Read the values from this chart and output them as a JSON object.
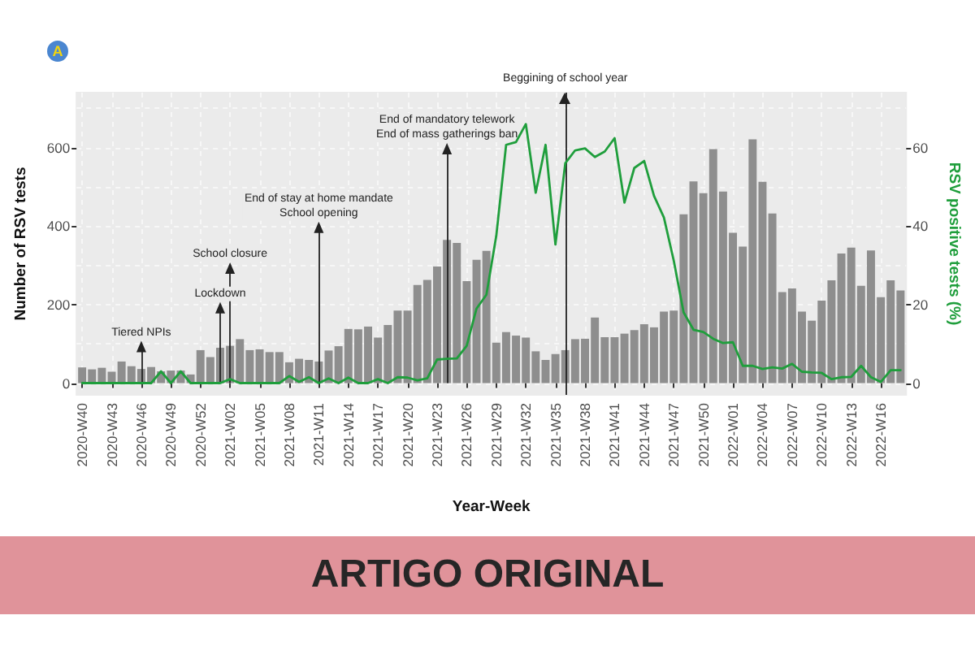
{
  "chart_data": {
    "type": "bar",
    "title": "A",
    "xlabel": "Year-Week",
    "ylabel": "Number of RSV tests",
    "y2label": "RSV positive tests (%)",
    "x": [
      "2020-09-28",
      "2020-10-05",
      "2020-10-12",
      "2020-10-19",
      "2020-10-26",
      "2020-11-02",
      "2020-11-09",
      "2020-11-16",
      "2020-11-23",
      "2020-11-30",
      "2020-12-07",
      "2020-12-14",
      "2020-12-21",
      "2020-12-28",
      "2021-01-04",
      "2021-01-11",
      "2021-01-18",
      "2021-01-25",
      "2021-02-01",
      "2021-02-08",
      "2021-02-15",
      "2021-02-22",
      "2021-03-01",
      "2021-03-08",
      "2021-03-15",
      "2021-03-22",
      "2021-03-29",
      "2021-04-05",
      "2021-04-12",
      "2021-04-19",
      "2021-04-26",
      "2021-05-03",
      "2021-05-10",
      "2021-05-17",
      "2021-05-24",
      "2021-05-31",
      "2021-06-07",
      "2021-06-14",
      "2021-06-21",
      "2021-06-28",
      "2021-07-05",
      "2021-07-12",
      "2021-07-19",
      "2021-07-26",
      "2021-08-02",
      "2021-08-09",
      "2021-08-16",
      "2021-08-23",
      "2021-08-30",
      "2021-09-06",
      "2021-09-13",
      "2021-09-20",
      "2021-09-27",
      "2021-10-04",
      "2021-10-11",
      "2021-10-18",
      "2021-10-25",
      "2021-11-01",
      "2021-11-08",
      "2021-11-15",
      "2021-11-22",
      "2021-11-29",
      "2021-12-06",
      "2021-12-13",
      "2021-12-20",
      "2021-12-27",
      "2022-01-03",
      "2022-01-10",
      "2022-01-17",
      "2022-01-24",
      "2022-01-31",
      "2022-02-07",
      "2022-02-14",
      "2022-02-21",
      "2022-02-28",
      "2022-03-07",
      "2022-03-14",
      "2022-03-21",
      "2022-03-28",
      "2022-04-04",
      "2022-04-11",
      "2022-04-18",
      "2022-04-25",
      "2022-05-02"
    ],
    "xlim": [
      "2020-09-24",
      "2022-05-06"
    ],
    "xticks": [
      {
        "value": "2020-09-28",
        "label": "2020-W40"
      },
      {
        "value": "2020-10-19",
        "label": "2020-W43"
      },
      {
        "value": "2020-11-09",
        "label": "2020-W46"
      },
      {
        "value": "2020-11-30",
        "label": "2020-W49"
      },
      {
        "value": "2020-12-21",
        "label": "2020-W52"
      },
      {
        "value": "2021-01-11",
        "label": "2021-W02"
      },
      {
        "value": "2021-02-01",
        "label": "2021-W05"
      },
      {
        "value": "2021-02-22",
        "label": "2021-W08"
      },
      {
        "value": "2021-03-15",
        "label": "2021-W11"
      },
      {
        "value": "2021-04-05",
        "label": "2021-W14"
      },
      {
        "value": "2021-04-26",
        "label": "2021-W17"
      },
      {
        "value": "2021-05-17",
        "label": "2021-W20"
      },
      {
        "value": "2021-06-07",
        "label": "2021-W23"
      },
      {
        "value": "2021-06-28",
        "label": "2021-W26"
      },
      {
        "value": "2021-07-19",
        "label": "2021-W29"
      },
      {
        "value": "2021-08-09",
        "label": "2021-W32"
      },
      {
        "value": "2021-08-30",
        "label": "2021-W35"
      },
      {
        "value": "2021-09-20",
        "label": "2021-W38"
      },
      {
        "value": "2021-10-11",
        "label": "2021-W41"
      },
      {
        "value": "2021-11-01",
        "label": "2021-W44"
      },
      {
        "value": "2021-11-22",
        "label": "2021-W47"
      },
      {
        "value": "2021-12-13",
        "label": "2021-W50"
      },
      {
        "value": "2022-01-03",
        "label": "2022-W01"
      },
      {
        "value": "2022-01-24",
        "label": "2022-W04"
      },
      {
        "value": "2022-02-14",
        "label": "2022-W07"
      },
      {
        "value": "2022-03-07",
        "label": "2022-W10"
      },
      {
        "value": "2022-03-28",
        "label": "2022-W13"
      },
      {
        "value": "2022-04-18",
        "label": "2022-W16"
      }
    ],
    "ylim": [
      -30,
      740
    ],
    "yticks": [
      0,
      200,
      400,
      600
    ],
    "y2lim": [
      -3,
      74
    ],
    "y2ticks": [
      0,
      20,
      40,
      60
    ],
    "series": [
      {
        "color": "#8e8e8e",
        "values": [
          40,
          35,
          39,
          29,
          55,
          43,
          36,
          41,
          30,
          32,
          32,
          22,
          84,
          66,
          90,
          95,
          112,
          84,
          86,
          79,
          79,
          53,
          62,
          59,
          55,
          83,
          94,
          138,
          137,
          144,
          116,
          148,
          185,
          185,
          250,
          263,
          297,
          365,
          357,
          260,
          314,
          337,
          103,
          130,
          121,
          116,
          81,
          59,
          74,
          84,
          112,
          113,
          167,
          117,
          117,
          126,
          135,
          150,
          142,
          182,
          185,
          430,
          514,
          484,
          596,
          488,
          383,
          348,
          621,
          513,
          432,
          232,
          241,
          182,
          159,
          210,
          262,
          330,
          345,
          248,
          338,
          219,
          262,
          236
        ]
      },
      {
        "type": "line",
        "axis": "y2",
        "color": "#1f9e3c",
        "values": [
          0,
          0,
          0,
          0,
          0,
          0,
          0,
          0,
          3,
          0,
          3,
          0,
          0,
          0,
          0,
          1,
          0,
          0,
          0,
          0,
          0,
          1.8,
          0.3,
          1.5,
          0,
          1.2,
          0,
          1.4,
          0,
          0,
          1,
          0,
          1.5,
          1.4,
          0.7,
          1.2,
          6,
          6.2,
          6.3,
          9.5,
          19,
          22.5,
          37.5,
          60.7,
          61.4,
          66,
          48.5,
          60.7,
          35.3,
          56,
          59.3,
          59.8,
          57.6,
          59,
          62.4,
          46,
          54.8,
          56.6,
          47.7,
          42.2,
          31.2,
          18,
          13.6,
          13,
          11.3,
          10.2,
          10.4,
          4.4,
          4.4,
          3.6,
          4,
          3.7,
          4.9,
          2.9,
          2.7,
          2.6,
          1,
          1.5,
          1.6,
          4.4,
          1.5,
          0.3,
          3.3,
          3.3
        ]
      }
    ],
    "marker": "none",
    "grid": true,
    "ref_lines": [
      {
        "axis": "x",
        "value": "2021-09-06",
        "label": "Beggining of school year",
        "color": "#222222"
      }
    ],
    "annotations": [
      {
        "text": "Tiered NPIs",
        "x": "2020-11-09",
        "y": 93
      },
      {
        "text": "Lockdown",
        "x": "2021-01-04",
        "y": 192
      },
      {
        "text": "School closure",
        "x": "2021-01-11",
        "y": 293
      },
      {
        "text": "End of stay at home mandate\nSchool opening",
        "x": "2021-03-15",
        "y": 397
      },
      {
        "text": "End of mandatory telework\nEnd of mass gatherings ban",
        "x": "2021-06-14",
        "y": 597
      },
      "ARTIGO ORIGINAL"
    ]
  }
}
